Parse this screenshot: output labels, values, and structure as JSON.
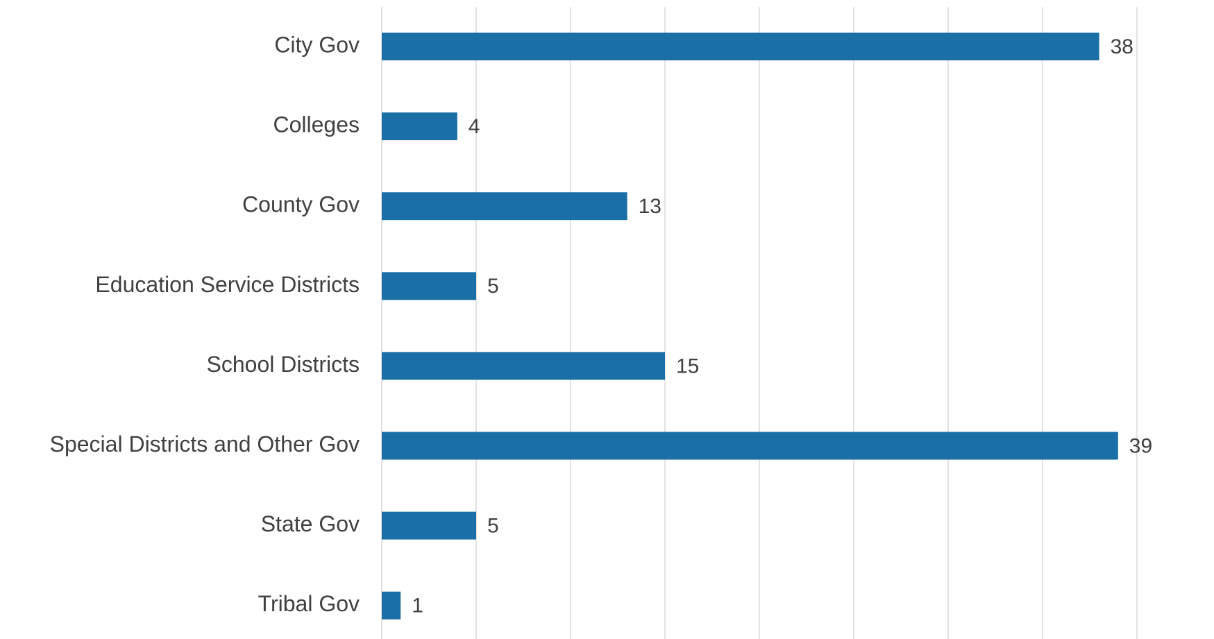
{
  "chart_data": {
    "type": "bar",
    "orientation": "horizontal",
    "title": "",
    "xlabel": "",
    "ylabel": "",
    "categories": [
      "City Gov",
      "Colleges",
      "County Gov",
      "Education Service Districts",
      "School Districts",
      "Special Districts and Other Gov",
      "State Gov",
      "Tribal Gov"
    ],
    "series": [
      {
        "values": [
          38,
          4,
          13,
          5,
          15,
          39,
          5,
          1
        ],
        "color": "#1a70a6"
      }
    ],
    "xlim": [
      0,
      40
    ],
    "grid_interval": 5,
    "grid": true,
    "gridline_color": "#d9d9d9",
    "data_labels": true,
    "legend": "none"
  }
}
